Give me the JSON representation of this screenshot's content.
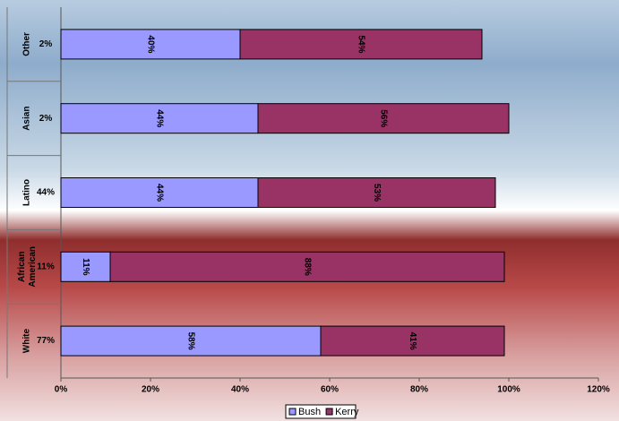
{
  "chart_data": {
    "type": "stacked_bar_horizontal",
    "categories": [
      "Other",
      "Asian",
      "Latino",
      "African American",
      "White"
    ],
    "category_shares": [
      "2%",
      "2%",
      "44%",
      "11%",
      "77%"
    ],
    "series": [
      {
        "name": "Bush",
        "color": "#9999ff",
        "values": [
          40,
          44,
          44,
          11,
          58
        ],
        "value_labels": [
          "40%",
          "44%",
          "44%",
          "11%",
          "58%"
        ]
      },
      {
        "name": "Kerry",
        "color": "#993366",
        "values": [
          54,
          56,
          53,
          88,
          41
        ],
        "value_labels": [
          "54%",
          "56%",
          "53%",
          "88%",
          "41%"
        ]
      }
    ],
    "xlim": [
      0,
      120
    ],
    "xticks": [
      {
        "value": 0,
        "label": "0%"
      },
      {
        "value": 20,
        "label": "20%"
      },
      {
        "value": 40,
        "label": "40%"
      },
      {
        "value": 60,
        "label": "60%"
      },
      {
        "value": 80,
        "label": "80%"
      },
      {
        "value": 100,
        "label": "100%"
      },
      {
        "value": 120,
        "label": "120%"
      }
    ],
    "legend": "bottom"
  }
}
